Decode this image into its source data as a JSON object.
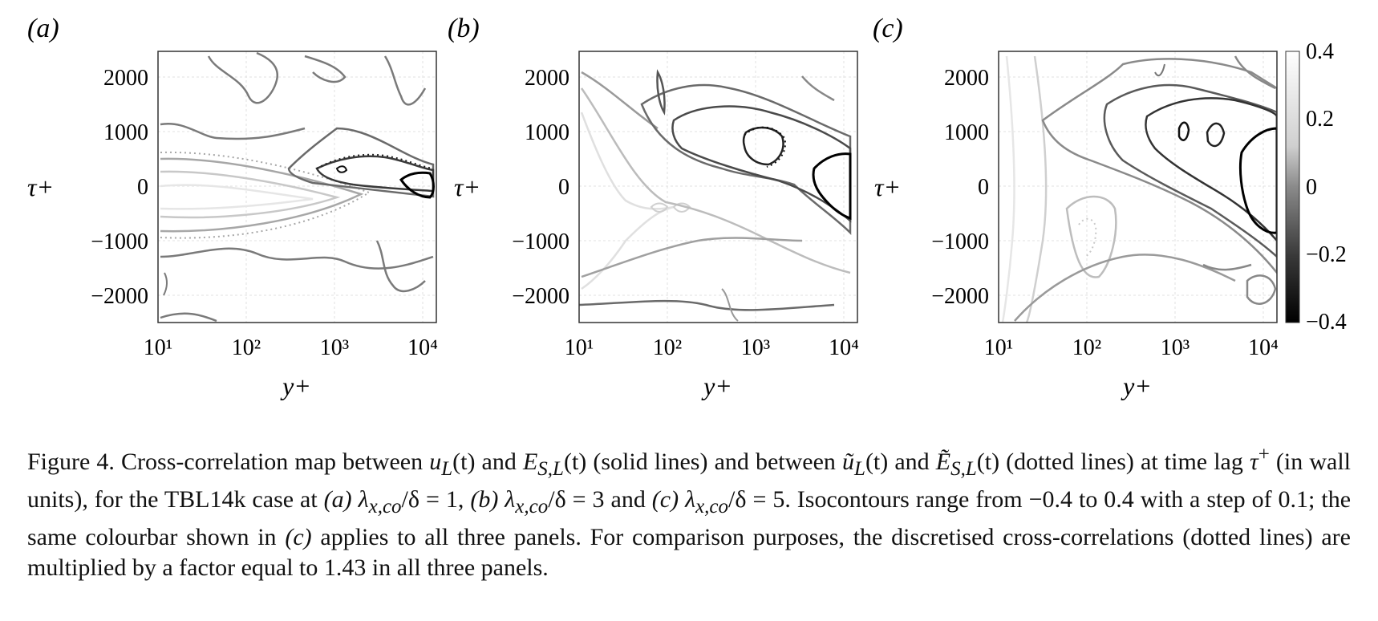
{
  "figure": {
    "panels": [
      {
        "label": "(a)"
      },
      {
        "label": "(b)"
      },
      {
        "label": "(c)"
      }
    ],
    "xlabel": "y+",
    "ylabel": "τ+",
    "xticks": [
      "10¹",
      "10²",
      "10³",
      "10⁴"
    ],
    "yticks": [
      "2000",
      "1000",
      "0",
      "−1000",
      "−2000"
    ],
    "colorbar": {
      "ticks": [
        "0.4",
        "0.2",
        "0",
        "−0.2",
        "−0.4"
      ],
      "range": [
        -0.4,
        0.4
      ],
      "colors": {
        "high": "#ffffff",
        "low": "#000000"
      }
    }
  },
  "chart_data": [
    {
      "type": "contour",
      "panel": "(a)",
      "xlabel": "y+",
      "ylabel": "τ+",
      "x_scale": "log",
      "xlim": [
        10,
        14000
      ],
      "ylim": [
        -2500,
        2500
      ],
      "levels": [
        -0.4,
        -0.3,
        -0.2,
        -0.1,
        0,
        0.1,
        0.2,
        0.3,
        0.4
      ],
      "line_styles": {
        "solid": "u_L(t) and E_S,L(t)",
        "dotted": "ũ_L(t) and Ẽ_S,L(t)"
      },
      "features": [
        {
          "peak": -0.4,
          "y_plus": 12000,
          "tau_plus": 0
        },
        {
          "peak": 0.3,
          "y_plus": 20,
          "tau_plus": -300
        }
      ]
    },
    {
      "type": "contour",
      "panel": "(b)",
      "xlabel": "y+",
      "ylabel": "τ+",
      "x_scale": "log",
      "xlim": [
        10,
        14000
      ],
      "ylim": [
        -2500,
        2500
      ],
      "levels": [
        -0.4,
        -0.3,
        -0.2,
        -0.1,
        0,
        0.1,
        0.2,
        0.3,
        0.4
      ],
      "features": [
        {
          "peak": -0.4,
          "y_plus": 12000,
          "tau_plus": 100
        },
        {
          "peak": -0.3,
          "y_plus": 1000,
          "tau_plus": 700
        },
        {
          "peak": 0.3,
          "y_plus": 20,
          "tau_plus": -300
        }
      ]
    },
    {
      "type": "contour",
      "panel": "(c)",
      "xlabel": "y+",
      "ylabel": "τ+",
      "x_scale": "log",
      "xlim": [
        10,
        14000
      ],
      "ylim": [
        -2500,
        2500
      ],
      "levels": [
        -0.4,
        -0.3,
        -0.2,
        -0.1,
        0,
        0.1,
        0.2,
        0.3,
        0.4
      ],
      "features": [
        {
          "peak": -0.4,
          "y_plus": 11000,
          "tau_plus": 200
        },
        {
          "peak": -0.3,
          "y_plus": 1200,
          "tau_plus": 900
        },
        {
          "peak": 0.2,
          "y_plus": 12,
          "tau_plus": 0
        }
      ]
    }
  ],
  "caption": {
    "p1": "Figure 4. Cross-correlation map between ",
    "m1": "u",
    "s1": "L",
    "p2": "(t) and ",
    "m2": "E",
    "s2": "S,L",
    "p3": "(t) (solid lines) and between ",
    "m3": "ũ",
    "s3": "L",
    "p4": "(t) and ",
    "m4": "Ẽ",
    "s4": "S,L",
    "p5": "(t) (dotted lines) at time lag ",
    "m5": "τ",
    "sup5": "+",
    "p6": " (in wall units), for the TBL14k case at ",
    "l1": "(a)",
    "m6": "λ",
    "s6": "x,co",
    "p7": "/δ = 1, ",
    "l2": "(b)",
    "m7": "λ",
    "s7": "x,co",
    "p8": "/δ = 3 and ",
    "l3": "(c)",
    "m8": "λ",
    "s8": "x,co",
    "p9": "/δ = 5. Isocontours range from −0.4 to 0.4 with a step of 0.1; the same colourbar shown in ",
    "l4": "(c)",
    "p10": " applies to all three panels. For comparison purposes, the discretised cross-correlations (dotted lines) are multiplied by a factor equal to 1.43 in all three panels."
  }
}
